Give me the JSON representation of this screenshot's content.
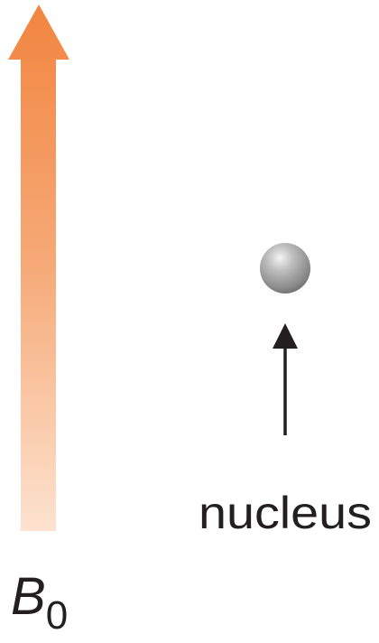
{
  "field_label": {
    "symbol": "B",
    "subscript": "0"
  },
  "nucleus_label": "nucleus"
}
